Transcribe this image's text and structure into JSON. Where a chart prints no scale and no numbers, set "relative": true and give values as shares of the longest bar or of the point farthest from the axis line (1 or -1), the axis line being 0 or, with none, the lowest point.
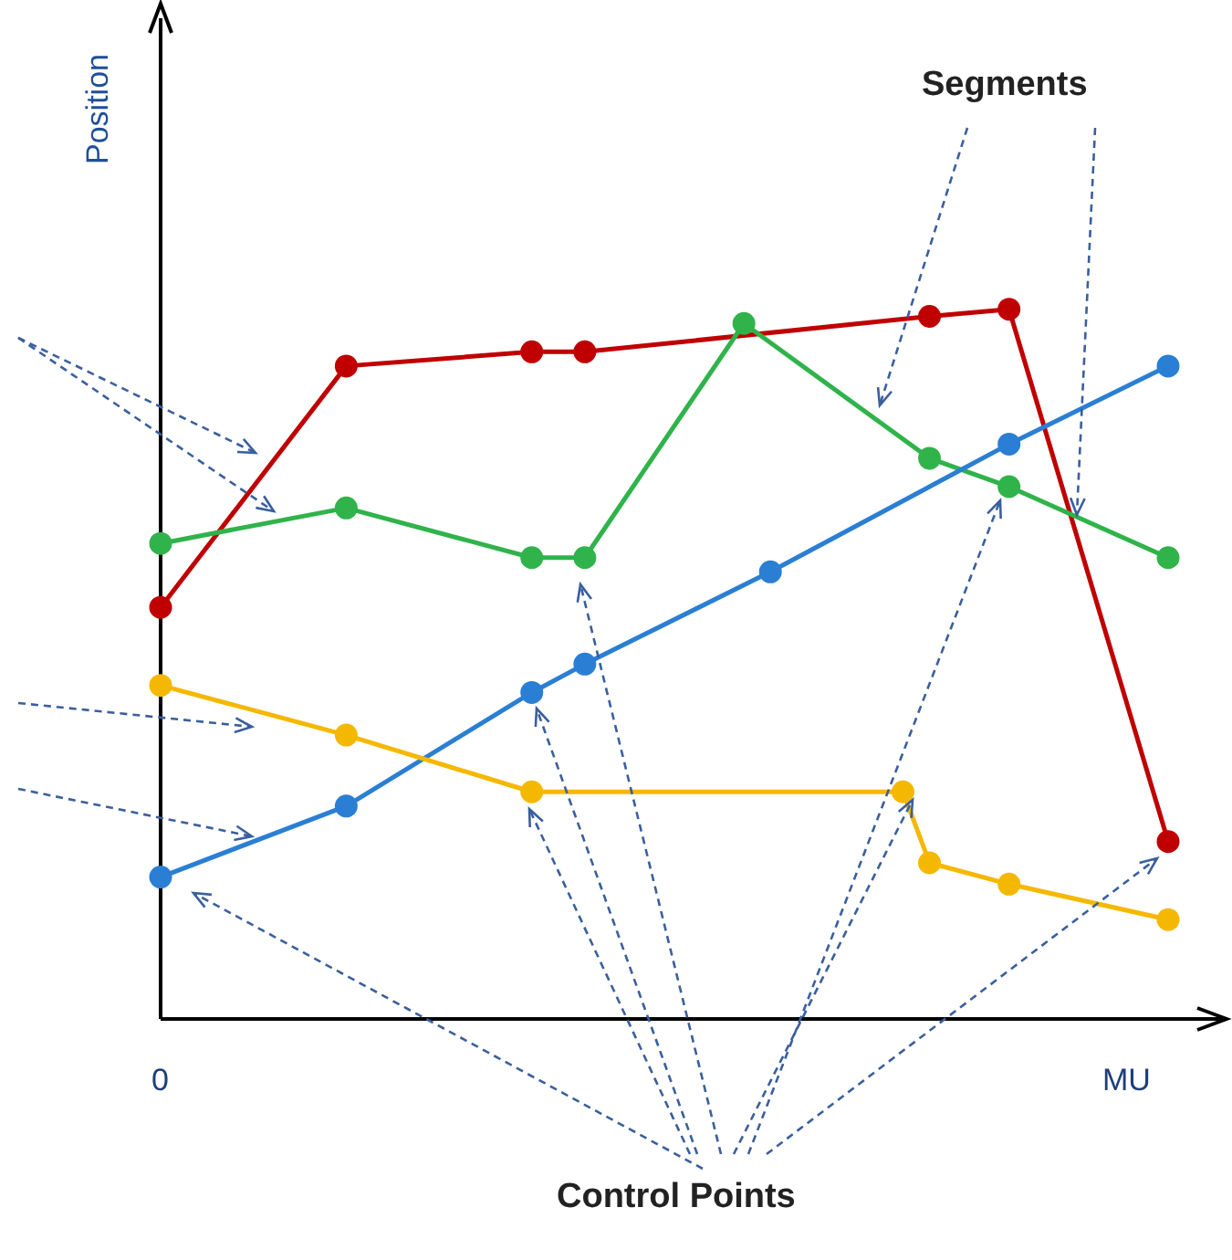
{
  "chart_data": {
    "type": "line",
    "relative": true,
    "ylabel": "Position",
    "xlabel": "MU",
    "annotations": [
      "Segments",
      "Control Points",
      "0"
    ],
    "categories": [
      null,
      null,
      null,
      null,
      null,
      null,
      null,
      null,
      null,
      null,
      null,
      null,
      null,
      null,
      null,
      null,
      null,
      null,
      null,
      null,
      null,
      null,
      null,
      null,
      null,
      null,
      null,
      null,
      null,
      null,
      null,
      null,
      null,
      null,
      null,
      null,
      null,
      null,
      null
    ],
    "marker": "circle",
    "line_style": "solid",
    "series": [
      {
        "color": "#c00000",
        "values": [
          0.58,
          null,
          null,
          null,
          null,
          null,
          null,
          0.92,
          null,
          null,
          null,
          null,
          null,
          null,
          0.94,
          null,
          0.94,
          null,
          null,
          null,
          null,
          null,
          null,
          null,
          null,
          null,
          null,
          null,
          null,
          0.99,
          null,
          null,
          1,
          null,
          null,
          null,
          null,
          null,
          0.25
        ]
      },
      {
        "color": "#2fb34a",
        "values": [
          0.67,
          null,
          null,
          null,
          null,
          null,
          null,
          0.72,
          null,
          null,
          null,
          null,
          null,
          null,
          0.65,
          null,
          0.65,
          null,
          null,
          null,
          null,
          null,
          0.98,
          null,
          null,
          null,
          null,
          null,
          null,
          0.79,
          null,
          null,
          0.75,
          null,
          null,
          null,
          null,
          null,
          0.65
        ]
      },
      {
        "color": "#2a7fd4",
        "values": [
          0.2,
          null,
          null,
          null,
          null,
          null,
          null,
          0.3,
          null,
          null,
          null,
          null,
          null,
          null,
          0.46,
          null,
          0.5,
          null,
          null,
          null,
          null,
          null,
          null,
          0.63,
          null,
          null,
          null,
          null,
          null,
          null,
          null,
          null,
          0.81,
          null,
          null,
          null,
          null,
          null,
          0.92
        ]
      },
      {
        "color": "#f5b800",
        "values": [
          0.47,
          null,
          null,
          null,
          null,
          null,
          null,
          0.4,
          null,
          null,
          null,
          null,
          null,
          null,
          0.32,
          null,
          null,
          null,
          null,
          null,
          null,
          null,
          null,
          null,
          null,
          null,
          null,
          null,
          0.32,
          0.22,
          null,
          null,
          0.19,
          null,
          null,
          null,
          null,
          null,
          0.14
        ]
      }
    ]
  }
}
